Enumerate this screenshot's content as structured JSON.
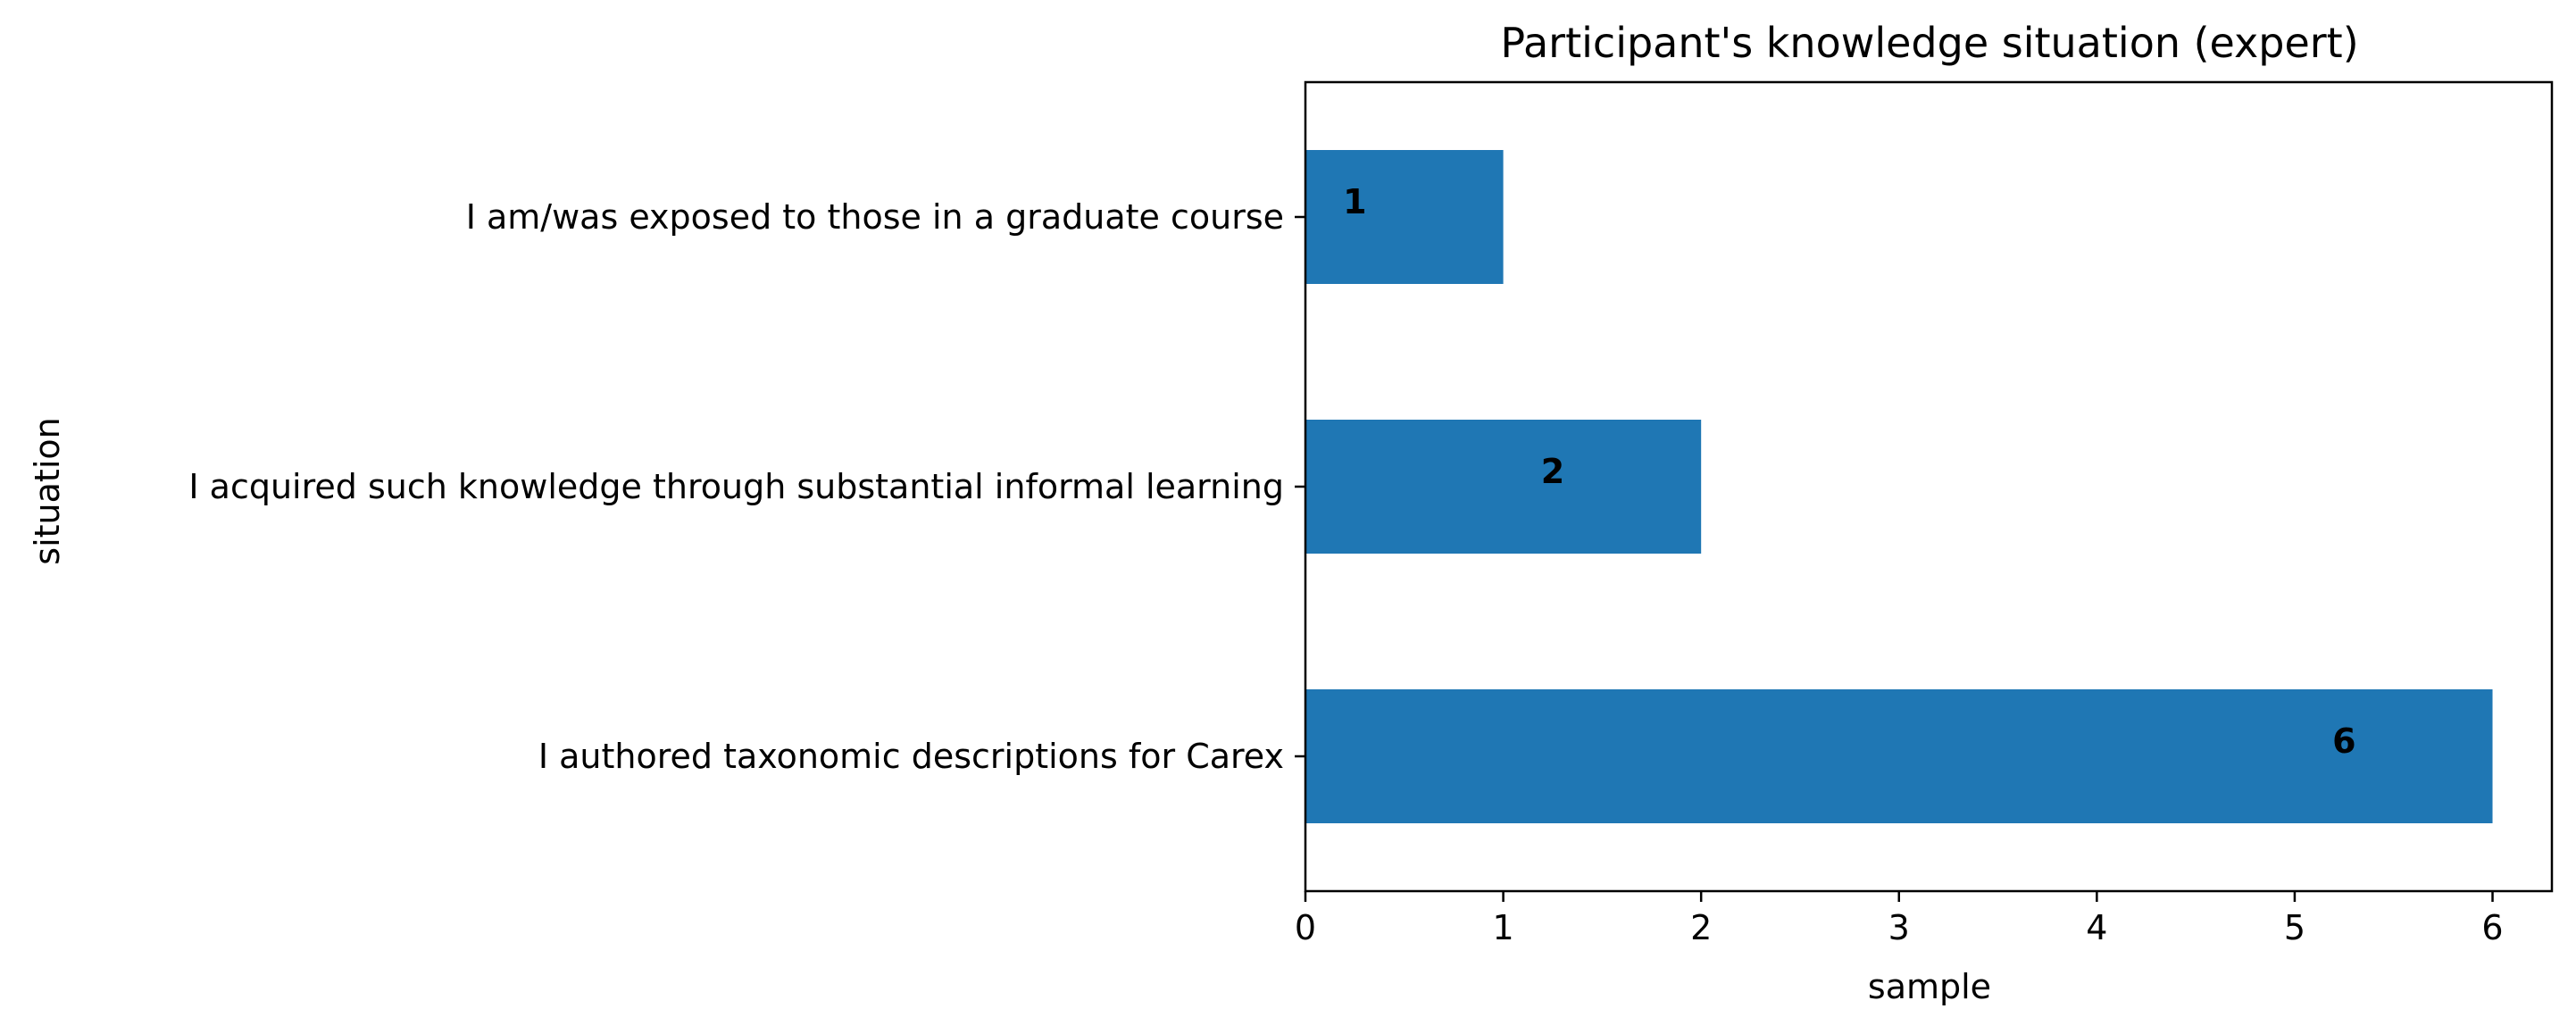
{
  "chart_data": {
    "type": "bar",
    "orientation": "horizontal",
    "title": "Participant's knowledge situation (expert)",
    "xlabel": "sample",
    "ylabel": "situation",
    "categories": [
      "I authored taxonomic descriptions for Carex",
      "I acquired such knowledge through substantial informal learning",
      "I am/was exposed to those in a graduate course"
    ],
    "values": [
      6,
      2,
      1
    ],
    "data_labels": [
      "6",
      "2",
      "1"
    ],
    "xlim": [
      0,
      6.3
    ],
    "xticks": [
      0,
      1,
      2,
      3,
      4,
      5,
      6
    ],
    "xtick_labels": [
      "0",
      "1",
      "2",
      "3",
      "4",
      "5",
      "6"
    ],
    "bar_color": "#1f77b4",
    "grid": false,
    "legend": "none"
  }
}
